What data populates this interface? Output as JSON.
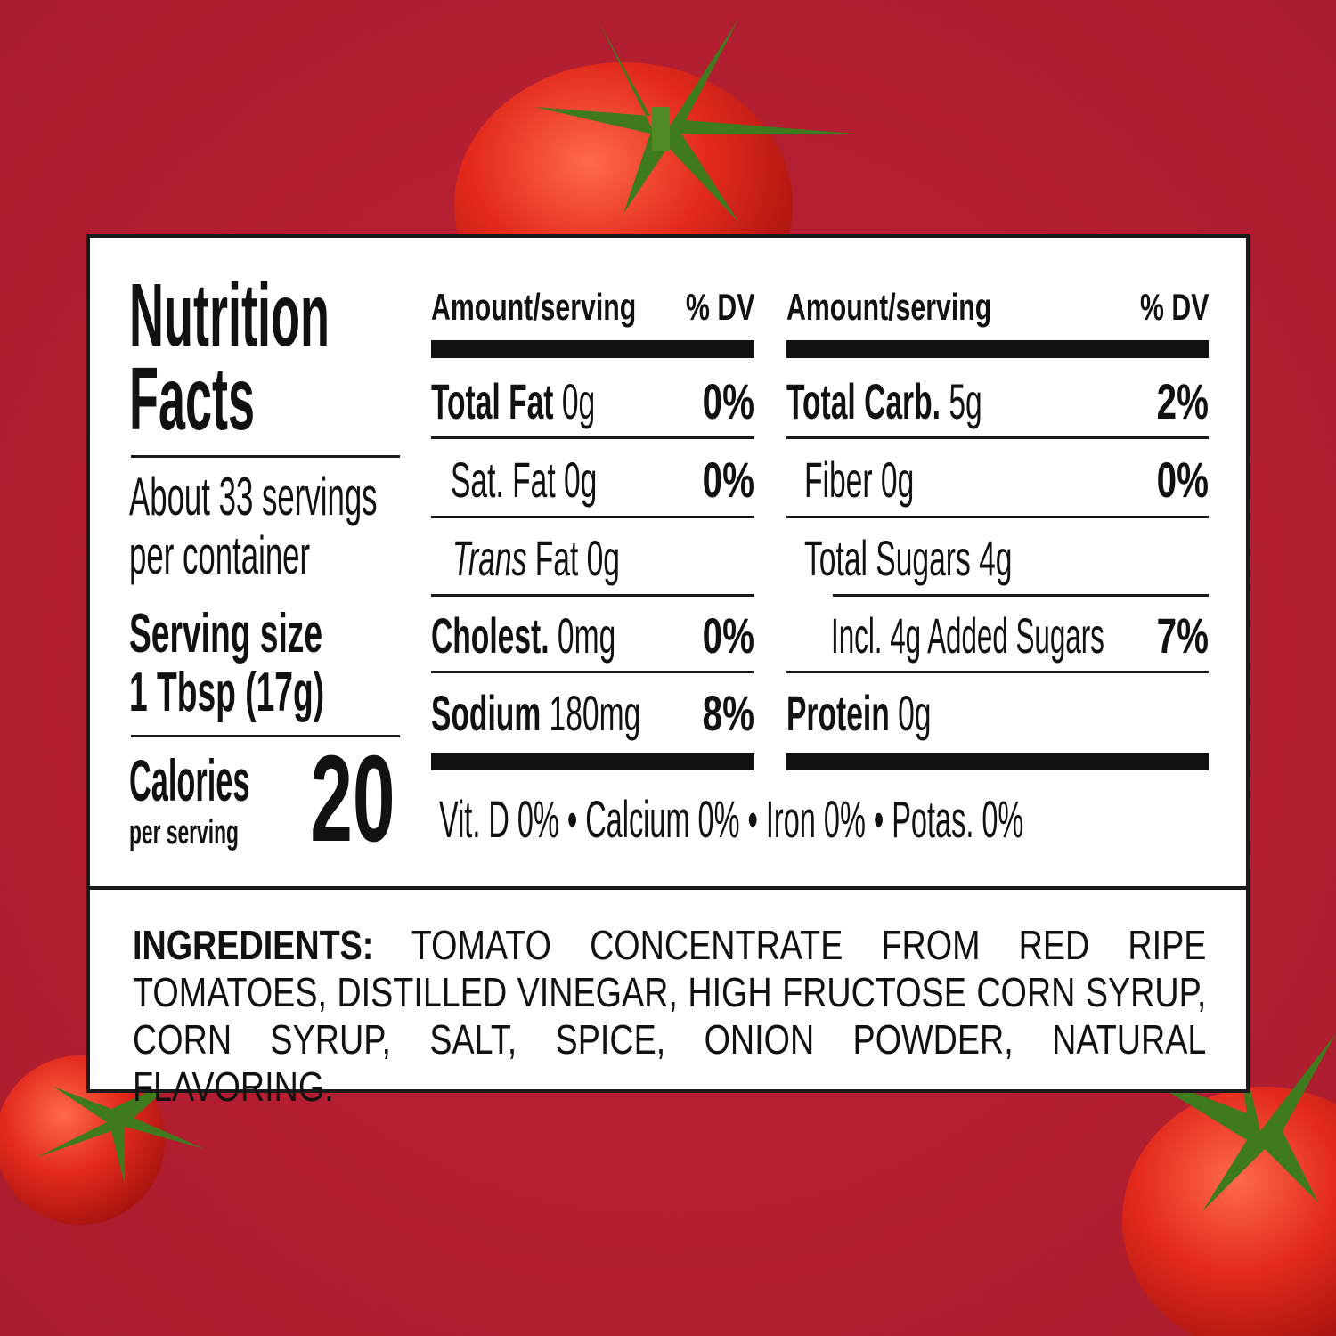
{
  "nutrition_facts": {
    "title_line1": "Nutrition",
    "title_line2": "Facts",
    "servings_line1": "About 33 servings",
    "servings_line2": "per container",
    "serving_size_label": "Serving size",
    "serving_size_value": "1 Tbsp (17g)",
    "calories_label": "Calories",
    "calories_sub": "per serving",
    "calories_value": "20",
    "left_table": {
      "header_amount": "Amount/serving",
      "header_dv": "% DV",
      "rows": [
        {
          "name": "Total Fat",
          "amount": "0g",
          "dv": "0%"
        },
        {
          "name": "Sat. Fat",
          "amount": "0g",
          "dv": "0%"
        },
        {
          "name": "Trans",
          "name_rest": "Fat 0g",
          "dv": ""
        },
        {
          "name": "Cholest.",
          "amount": "0mg",
          "dv": "0%"
        },
        {
          "name": "Sodium",
          "amount": "180mg",
          "dv": "8%"
        }
      ]
    },
    "right_table": {
      "header_amount": "Amount/serving",
      "header_dv": "% DV",
      "rows": [
        {
          "name": "Total Carb.",
          "amount": "5g",
          "dv": "2%"
        },
        {
          "name": "Fiber",
          "amount": "0g",
          "dv": "0%"
        },
        {
          "name": "Total Sugars",
          "amount": "4g",
          "dv": ""
        },
        {
          "name": "Incl. 4g Added Sugars",
          "amount": "",
          "dv": "7%"
        },
        {
          "name": "Protein",
          "amount": "0g",
          "dv": ""
        }
      ]
    },
    "vitamins": "Vit. D 0% • Calcium 0% • Iron 0% • Potas. 0%"
  },
  "ingredients": {
    "label": "INGREDIENTS:",
    "text": "TOMATO CONCENTRATE FROM RED RIPE TOMATOES, DISTILLED VINEGAR, HIGH FRUCTOSE CORN SYRUP, CORN SYRUP, SALT, SPICE, ONION POWDER, NATURAL FLAVORING."
  },
  "colors": {
    "background": "#b31f31",
    "tomato": "#e0281c",
    "stem": "#3f7a1e"
  }
}
